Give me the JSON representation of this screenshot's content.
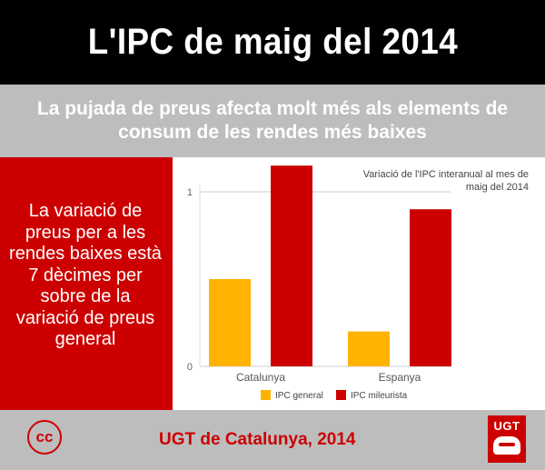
{
  "header": {
    "title": "L'IPC de maig del 2014"
  },
  "subtitle": {
    "text": "La pujada de preus afecta molt més als elements de consum de les rendes més baixes"
  },
  "left_panel": {
    "text": "La variació de preus per a les rendes baixes està 7 dècimes per sobre de la variació de preus general"
  },
  "footer": {
    "credit": "UGT de Catalunya, 2014",
    "cc_icon_text": "cc",
    "logo_text": "UGT"
  },
  "colors": {
    "red": "#cc0000",
    "orange": "#ffb300",
    "grey": "#bdbdbd"
  },
  "chart_data": {
    "type": "bar",
    "title": "Variació de l'IPC interanual al mes de maig del 2014",
    "title_lines": [
      "Variació de l'IPC interanual al mes de",
      "maig del 2014"
    ],
    "categories": [
      "Catalunya",
      "Espanya"
    ],
    "series": [
      {
        "name": "IPC general",
        "values": [
          0.5,
          0.2
        ],
        "color": "#ffb300"
      },
      {
        "name": "IPC mileurista",
        "values": [
          1.15,
          0.9
        ],
        "color": "#cc0000"
      }
    ],
    "yticks": [
      0,
      1
    ],
    "ylim": [
      0,
      1.2
    ],
    "legend_position": "bottom",
    "grid": true
  }
}
